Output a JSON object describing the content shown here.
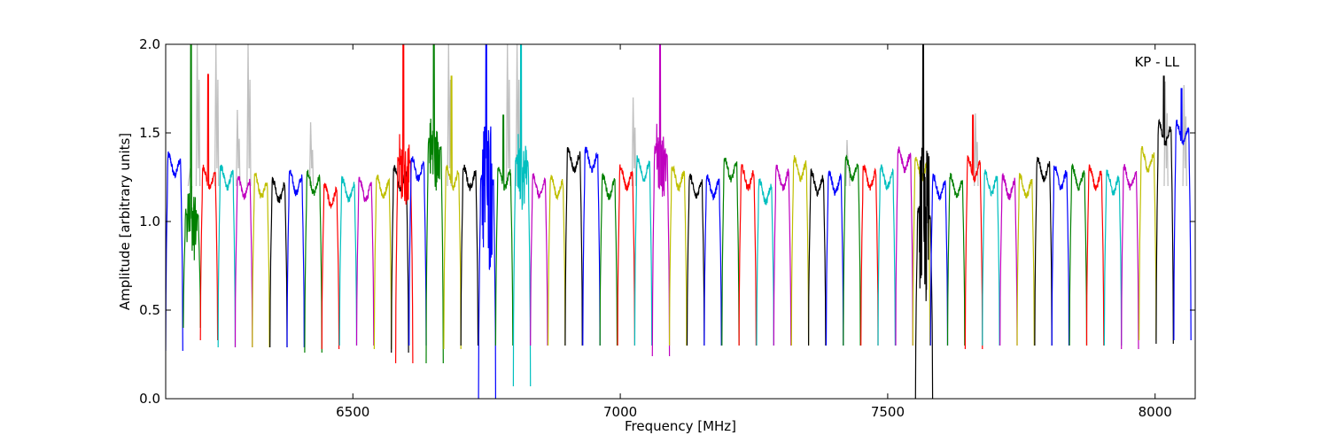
{
  "chart_data": {
    "type": "line",
    "title": "",
    "xlabel": "Frequency [MHz]",
    "ylabel": "Amplitude [arbitrary units]",
    "annotation": "KP - LL",
    "xlim": [
      6150,
      8075
    ],
    "ylim": [
      0.0,
      2.0
    ],
    "x_ticks": [
      6500,
      7000,
      7500,
      8000
    ],
    "y_ticks": [
      0.0,
      0.5,
      1.0,
      1.5,
      2.0
    ],
    "y_tick_labels": [
      "0.0",
      "0.5",
      "1.0",
      "1.5",
      "2.0"
    ],
    "grid": false,
    "legend": "none",
    "channel_width_mhz": 32,
    "background_series": {
      "color": "#c0c0c0",
      "description_values": "unflagged raw bandpass (gray) behind colored channels",
      "spikes": [
        {
          "x": 6195,
          "y": 1.25
        },
        {
          "x": 6210,
          "y": 2.0
        },
        {
          "x": 6245,
          "y": 2.0
        },
        {
          "x": 6285,
          "y": 1.63
        },
        {
          "x": 6305,
          "y": 2.0
        },
        {
          "x": 6422,
          "y": 1.56
        },
        {
          "x": 6680,
          "y": 2.0
        },
        {
          "x": 6790,
          "y": 2.0
        },
        {
          "x": 6808,
          "y": 2.0
        },
        {
          "x": 7025,
          "y": 1.7
        },
        {
          "x": 7425,
          "y": 1.46
        },
        {
          "x": 7665,
          "y": 1.61
        },
        {
          "x": 8020,
          "y": 1.79
        },
        {
          "x": 8055,
          "y": 1.77
        }
      ]
    },
    "palette": [
      "#0000ff",
      "#008000",
      "#ff0000",
      "#00bfbf",
      "#bf00bf",
      "#bfbf00",
      "#000000"
    ],
    "channels": [
      {
        "start": 6150,
        "level": 1.32,
        "color": "#0000ff",
        "min": 0.27
      },
      {
        "start": 6183,
        "level": 1.0,
        "color": "#008000",
        "min": 0.4,
        "spike": 2.0
      },
      {
        "start": 6215,
        "level": 1.25,
        "color": "#ff0000",
        "min": 0.33,
        "spike": 1.78
      },
      {
        "start": 6248,
        "level": 1.25,
        "color": "#00bfbf",
        "min": 0.29
      },
      {
        "start": 6280,
        "level": 1.2,
        "color": "#bf00bf",
        "min": 0.29
      },
      {
        "start": 6312,
        "level": 1.2,
        "color": "#bfbf00",
        "min": 0.29
      },
      {
        "start": 6345,
        "level": 1.18,
        "color": "#000000",
        "min": 0.29
      },
      {
        "start": 6377,
        "level": 1.22,
        "color": "#0000ff",
        "min": 0.29
      },
      {
        "start": 6410,
        "level": 1.22,
        "color": "#008000",
        "min": 0.26
      },
      {
        "start": 6442,
        "level": 1.15,
        "color": "#ff0000",
        "min": 0.28
      },
      {
        "start": 6475,
        "level": 1.18,
        "color": "#00bfbf",
        "min": 0.3
      },
      {
        "start": 6507,
        "level": 1.18,
        "color": "#bf00bf",
        "min": 0.3
      },
      {
        "start": 6540,
        "level": 1.2,
        "color": "#bfbf00",
        "min": 0.28
      },
      {
        "start": 6572,
        "level": 1.25,
        "color": "#000000",
        "min": 0.26
      },
      {
        "start": 6580,
        "level": 1.3,
        "color": "#ff0000",
        "min": 0.2,
        "spike": 2.0
      },
      {
        "start": 6605,
        "level": 1.3,
        "color": "#0000ff",
        "min": 0.3
      },
      {
        "start": 6637,
        "level": 1.4,
        "color": "#008000",
        "min": 0.2,
        "spike": 2.0
      },
      {
        "start": 6670,
        "level": 1.25,
        "color": "#bfbf00",
        "min": 0.28,
        "spike": 1.77
      },
      {
        "start": 6702,
        "level": 1.25,
        "color": "#000000",
        "min": 0.3
      },
      {
        "start": 6735,
        "level": 1.2,
        "color": "#0000ff",
        "min": 0.0,
        "spike": 2.0
      },
      {
        "start": 6767,
        "level": 1.25,
        "color": "#008000",
        "min": 0.3,
        "spike": 1.55
      },
      {
        "start": 6800,
        "level": 1.3,
        "color": "#00bfbf",
        "min": 0.07,
        "spike": 2.0
      },
      {
        "start": 6832,
        "level": 1.2,
        "color": "#bf00bf",
        "min": 0.3
      },
      {
        "start": 6865,
        "level": 1.2,
        "color": "#bfbf00",
        "min": 0.3
      },
      {
        "start": 6897,
        "level": 1.35,
        "color": "#000000",
        "min": 0.3
      },
      {
        "start": 6930,
        "level": 1.35,
        "color": "#0000ff",
        "min": 0.3
      },
      {
        "start": 6962,
        "level": 1.2,
        "color": "#008000",
        "min": 0.3
      },
      {
        "start": 6995,
        "level": 1.25,
        "color": "#ff0000",
        "min": 0.3
      },
      {
        "start": 7027,
        "level": 1.3,
        "color": "#00bfbf",
        "min": 0.3
      },
      {
        "start": 7060,
        "level": 1.35,
        "color": "#bf00bf",
        "min": 0.24,
        "spike": 2.0
      },
      {
        "start": 7092,
        "level": 1.25,
        "color": "#bfbf00",
        "min": 0.3
      },
      {
        "start": 7125,
        "level": 1.2,
        "color": "#000000",
        "min": 0.3
      },
      {
        "start": 7157,
        "level": 1.2,
        "color": "#0000ff",
        "min": 0.3
      },
      {
        "start": 7190,
        "level": 1.3,
        "color": "#008000",
        "min": 0.3
      },
      {
        "start": 7222,
        "level": 1.25,
        "color": "#ff0000",
        "min": 0.3
      },
      {
        "start": 7255,
        "level": 1.17,
        "color": "#00bfbf",
        "min": 0.3
      },
      {
        "start": 7287,
        "level": 1.25,
        "color": "#bf00bf",
        "min": 0.3
      },
      {
        "start": 7320,
        "level": 1.3,
        "color": "#bfbf00",
        "min": 0.3
      },
      {
        "start": 7352,
        "level": 1.22,
        "color": "#000000",
        "min": 0.3
      },
      {
        "start": 7385,
        "level": 1.22,
        "color": "#0000ff",
        "min": 0.3
      },
      {
        "start": 7417,
        "level": 1.3,
        "color": "#008000",
        "min": 0.3
      },
      {
        "start": 7450,
        "level": 1.25,
        "color": "#ff0000",
        "min": 0.3
      },
      {
        "start": 7482,
        "level": 1.25,
        "color": "#00bfbf",
        "min": 0.3
      },
      {
        "start": 7515,
        "level": 1.35,
        "color": "#bf00bf",
        "min": 0.3
      },
      {
        "start": 7547,
        "level": 1.3,
        "color": "#bfbf00",
        "min": 0.3
      },
      {
        "start": 7552,
        "level": 1.0,
        "color": "#000000",
        "min": 0.0,
        "spike": 2.0
      },
      {
        "start": 7580,
        "level": 1.2,
        "color": "#0000ff",
        "min": 0.3
      },
      {
        "start": 7612,
        "level": 1.2,
        "color": "#008000",
        "min": 0.3
      },
      {
        "start": 7645,
        "level": 1.3,
        "color": "#ff0000",
        "min": 0.28,
        "spike": 1.55
      },
      {
        "start": 7677,
        "level": 1.22,
        "color": "#00bfbf",
        "min": 0.3
      },
      {
        "start": 7710,
        "level": 1.2,
        "color": "#bf00bf",
        "min": 0.3
      },
      {
        "start": 7742,
        "level": 1.2,
        "color": "#bfbf00",
        "min": 0.3
      },
      {
        "start": 7775,
        "level": 1.3,
        "color": "#000000",
        "min": 0.3
      },
      {
        "start": 7807,
        "level": 1.25,
        "color": "#0000ff",
        "min": 0.3
      },
      {
        "start": 7840,
        "level": 1.25,
        "color": "#008000",
        "min": 0.3
      },
      {
        "start": 7872,
        "level": 1.25,
        "color": "#ff0000",
        "min": 0.3
      },
      {
        "start": 7905,
        "level": 1.22,
        "color": "#00bfbf",
        "min": 0.3
      },
      {
        "start": 7937,
        "level": 1.25,
        "color": "#bf00bf",
        "min": 0.28
      },
      {
        "start": 7970,
        "level": 1.35,
        "color": "#bfbf00",
        "min": 0.33
      },
      {
        "start": 8002,
        "level": 1.5,
        "color": "#000000",
        "min": 0.31,
        "spike": 1.77
      },
      {
        "start": 8035,
        "level": 1.5,
        "color": "#0000ff",
        "min": 0.33,
        "spike": 1.7
      }
    ]
  }
}
